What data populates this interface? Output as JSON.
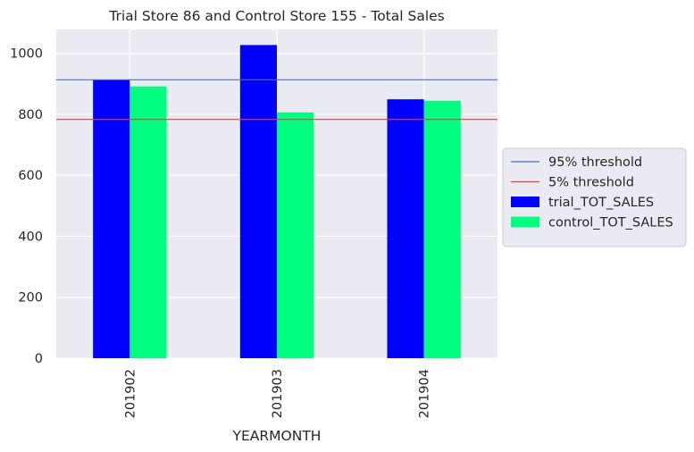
{
  "chart_data": {
    "type": "bar",
    "title": "Trial Store 86 and Control Store 155 - Total Sales",
    "xlabel": "YEARMONTH",
    "ylabel": "",
    "categories": [
      "201902",
      "201903",
      "201904"
    ],
    "series": [
      {
        "name": "trial_TOT_SALES",
        "values": [
          914,
          1027,
          849
        ],
        "color": "#0000ff"
      },
      {
        "name": "control_TOT_SALES",
        "values": [
          891,
          806,
          844
        ],
        "color": "#00ff7f"
      }
    ],
    "lines": [
      {
        "name": "95% threshold",
        "value": 913,
        "color": "#4c72b0"
      },
      {
        "name": "5% threshold",
        "value": 783,
        "color": "#dd4444"
      }
    ],
    "ylim": [
      0,
      1078
    ],
    "yticks": [
      0,
      200,
      400,
      600,
      800,
      1000
    ],
    "grid": true,
    "legend_position": "right",
    "background": "#eaeaf2"
  }
}
